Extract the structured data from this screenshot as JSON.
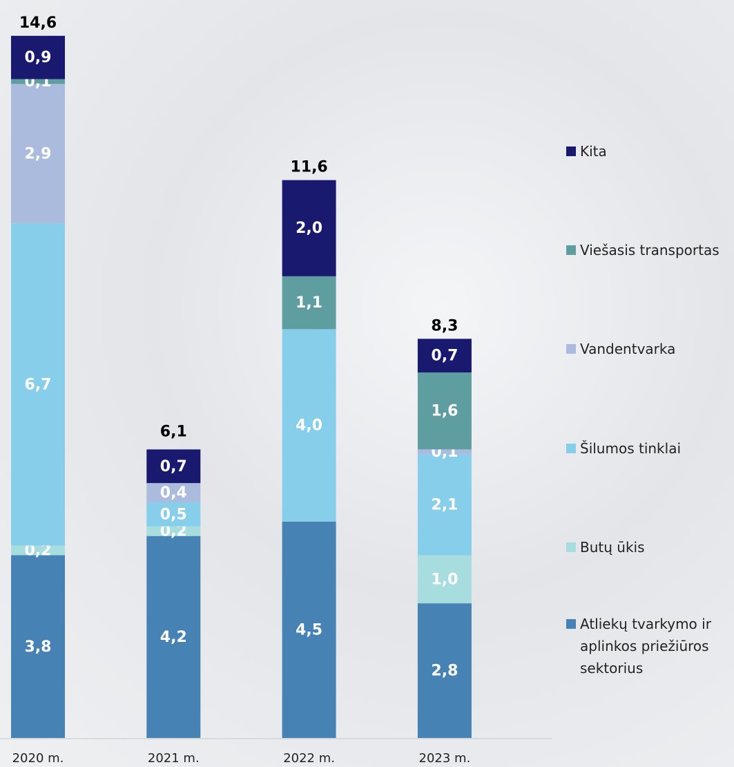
{
  "chart_data": {
    "type": "stacked-bar",
    "categories": [
      "2020 m.",
      "2021 m.",
      "2022 m.",
      "2023 m."
    ],
    "series": [
      {
        "name": "Atliekų tvarkymo ir aplinkos priežiūros sektorius",
        "color": "#4682b4",
        "values": [
          3.8,
          4.2,
          4.5,
          2.8
        ],
        "value_labels": [
          "3,8",
          "4,2",
          "4,5",
          "2,8"
        ]
      },
      {
        "name": "Butų ūkis",
        "color": "#a8dde0",
        "values": [
          0.2,
          0.2,
          null,
          1.0
        ],
        "value_labels": [
          "0,2",
          "0,2",
          null,
          "1,0"
        ]
      },
      {
        "name": "Šilumos tinklai",
        "color": "#87ceeb",
        "values": [
          6.7,
          0.5,
          4.0,
          2.1
        ],
        "value_labels": [
          "6,7",
          "0,5",
          "4,0",
          "2,1"
        ]
      },
      {
        "name": "Vandentvarka",
        "color": "#aabbdd",
        "values": [
          2.9,
          0.4,
          null,
          0.1
        ],
        "value_labels": [
          "2,9",
          "0,4",
          null,
          "0,1"
        ]
      },
      {
        "name": "Viešasis transportas",
        "color": "#5f9ea0",
        "values": [
          0.1,
          null,
          1.1,
          1.6
        ],
        "value_labels": [
          "0,1",
          null,
          "1,1",
          "1,6"
        ]
      },
      {
        "name": "Kita",
        "color": "#191970",
        "values": [
          0.9,
          0.7,
          2.0,
          0.7
        ],
        "value_labels": [
          "0,9",
          "0,7",
          "2,0",
          "0,7"
        ]
      }
    ],
    "totals": [
      14.6,
      6.1,
      11.6,
      8.3
    ],
    "total_labels": [
      "14,6",
      "6,1",
      "11,6",
      "8,3"
    ]
  }
}
